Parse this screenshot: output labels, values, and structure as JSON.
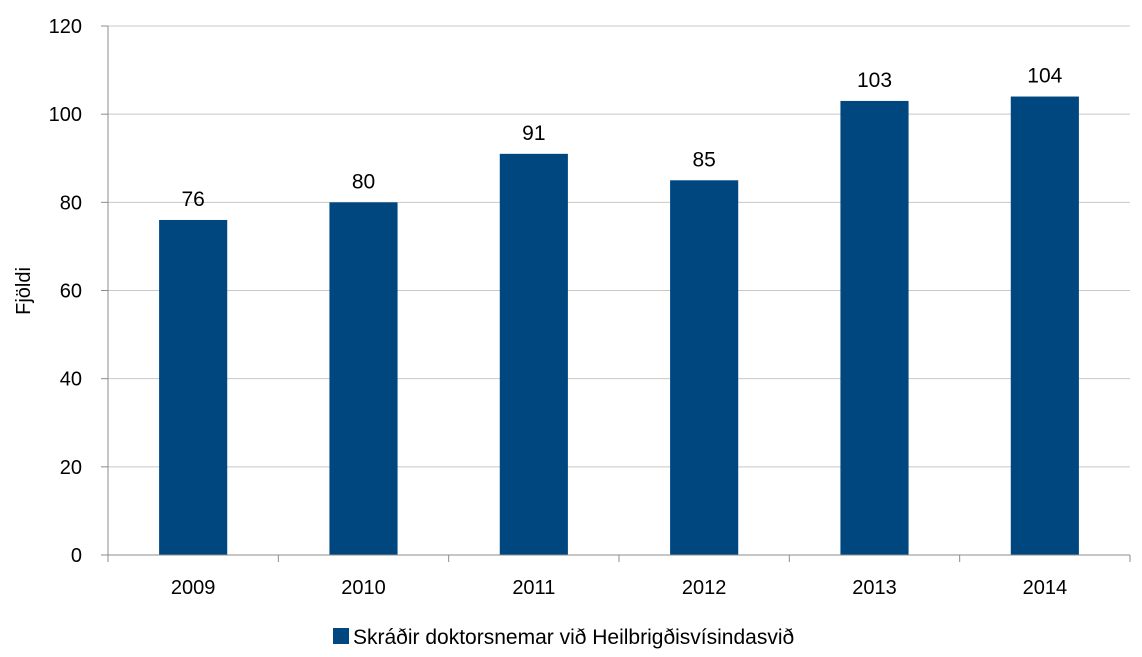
{
  "chart_data": {
    "type": "bar",
    "title": "",
    "xlabel": "",
    "ylabel": "Fjöldi",
    "ylim": [
      0,
      120
    ],
    "yticks": [
      0,
      20,
      40,
      60,
      80,
      100,
      120
    ],
    "categories": [
      "2009",
      "2010",
      "2011",
      "2012",
      "2013",
      "2014"
    ],
    "series": [
      {
        "name": "Skráðir doktorsnemar við Heilbrigðisvísindasvið",
        "values": [
          76,
          80,
          91,
          85,
          103,
          104
        ],
        "color": "#00467f"
      }
    ],
    "data_labels": true,
    "grid": true,
    "legend_position": "bottom-center"
  }
}
